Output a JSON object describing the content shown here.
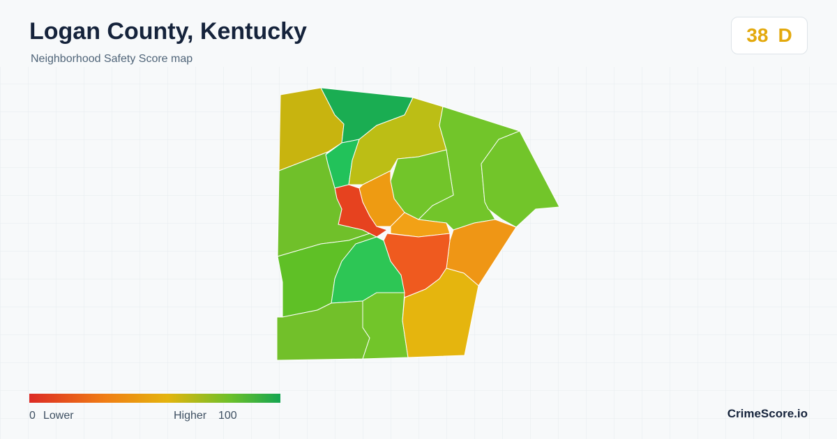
{
  "header": {
    "title": "Logan County, Kentucky",
    "subtitle": "Neighborhood Safety Score map"
  },
  "score": {
    "value": "38",
    "grade": "D"
  },
  "legend": {
    "min": "0",
    "min_label": "Lower",
    "max_label": "Higher",
    "max": "100"
  },
  "brand": "CrimeScore.io"
}
